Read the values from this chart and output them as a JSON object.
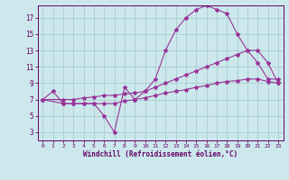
{
  "bg_color": "#cce8ec",
  "line_color": "#993399",
  "grid_color": "#aacccc",
  "axis_color": "#660066",
  "xlabel": "Windchill (Refroidissement éolien,°C)",
  "xlim": [
    -0.5,
    23.5
  ],
  "ylim": [
    2,
    18.5
  ],
  "xticks": [
    0,
    1,
    2,
    3,
    4,
    5,
    6,
    7,
    8,
    9,
    10,
    11,
    12,
    13,
    14,
    15,
    16,
    17,
    18,
    19,
    20,
    21,
    22,
    23
  ],
  "yticks": [
    3,
    5,
    7,
    9,
    11,
    13,
    15,
    17
  ],
  "line1_x": [
    0,
    1,
    2,
    3,
    4,
    5,
    6,
    7,
    8,
    9,
    10,
    11,
    12,
    13,
    14,
    15,
    16,
    17,
    18,
    19,
    20,
    21,
    22,
    23
  ],
  "line1_y": [
    7.0,
    8.0,
    6.5,
    6.5,
    6.5,
    6.5,
    5.0,
    3.0,
    8.5,
    7.0,
    8.0,
    9.5,
    13.0,
    15.5,
    17.0,
    18.0,
    18.5,
    18.0,
    17.5,
    15.0,
    13.0,
    11.5,
    9.5,
    9.5
  ],
  "line2_x": [
    0,
    2,
    3,
    4,
    5,
    6,
    7,
    8,
    9,
    10,
    11,
    12,
    13,
    14,
    15,
    16,
    17,
    18,
    19,
    20,
    21,
    22,
    23
  ],
  "line2_y": [
    7.0,
    7.0,
    7.0,
    7.2,
    7.3,
    7.5,
    7.5,
    7.7,
    7.8,
    8.0,
    8.5,
    9.0,
    9.5,
    10.0,
    10.5,
    11.0,
    11.5,
    12.0,
    12.5,
    13.0,
    13.0,
    11.5,
    9.0
  ],
  "line3_x": [
    0,
    2,
    3,
    4,
    5,
    6,
    7,
    8,
    9,
    10,
    11,
    12,
    13,
    14,
    15,
    16,
    17,
    18,
    19,
    20,
    21,
    22,
    23
  ],
  "line3_y": [
    7.0,
    6.5,
    6.5,
    6.5,
    6.5,
    6.5,
    6.5,
    6.8,
    7.0,
    7.2,
    7.5,
    7.8,
    8.0,
    8.2,
    8.5,
    8.7,
    9.0,
    9.2,
    9.3,
    9.5,
    9.5,
    9.2,
    9.0
  ]
}
